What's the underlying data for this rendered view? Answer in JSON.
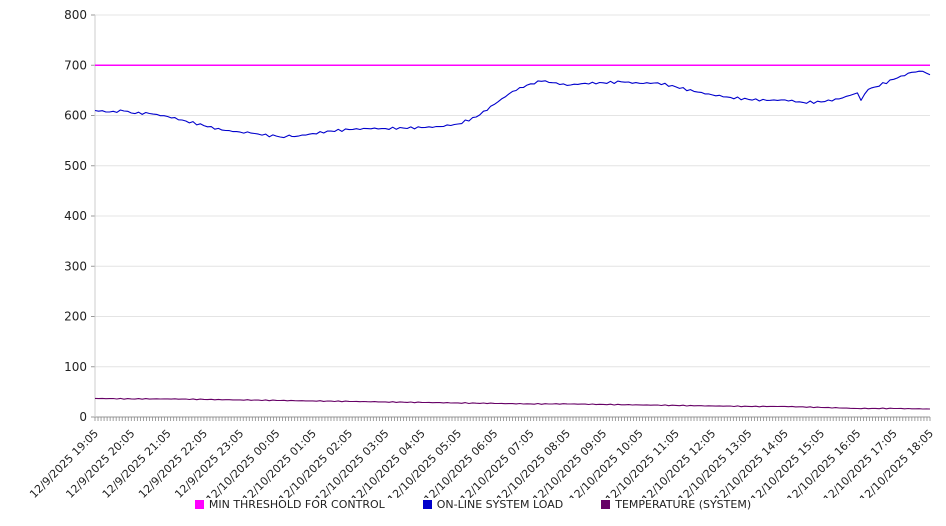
{
  "chart_data": {
    "type": "line",
    "title": "",
    "grid": "horizontal",
    "legend_position": "bottom",
    "x_axis": {
      "labels": [
        "12/9/2025 19:05",
        "12/9/2025 20:05",
        "12/9/2025 21:05",
        "12/9/2025 22:05",
        "12/9/2025 23:05",
        "12/10/2025 00:05",
        "12/10/2025 01:05",
        "12/10/2025 02:05",
        "12/10/2025 03:05",
        "12/10/2025 04:05",
        "12/10/2025 05:05",
        "12/10/2025 06:05",
        "12/10/2025 07:05",
        "12/10/2025 08:05",
        "12/10/2025 09:05",
        "12/10/2025 10:05",
        "12/10/2025 11:05",
        "12/10/2025 12:05",
        "12/10/2025 13:05",
        "12/10/2025 14:05",
        "12/10/2025 15:05",
        "12/10/2025 16:05",
        "12/10/2025 17:05",
        "12/10/2025 18:05"
      ],
      "hours_span": 23,
      "minor_ticks_per_hour": 12
    },
    "y_axis": {
      "min": 0,
      "max": 800,
      "tick_step": 100
    },
    "series": [
      {
        "name": "MIN THRESHOLD FOR CONTROL",
        "color": "#ff00ff",
        "kind": "threshold",
        "value": 700
      },
      {
        "name": "ON-LINE SYSTEM LOAD",
        "color": "#0000cc",
        "kind": "line",
        "points": [
          [
            0,
            610
          ],
          [
            0.4,
            607
          ],
          [
            0.8,
            609
          ],
          [
            1,
            605
          ],
          [
            1.5,
            604
          ],
          [
            2,
            598
          ],
          [
            2.5,
            589
          ],
          [
            3,
            580
          ],
          [
            3.5,
            571
          ],
          [
            4,
            567
          ],
          [
            4.3,
            565
          ],
          [
            4.6,
            561
          ],
          [
            5,
            559
          ],
          [
            5.2,
            556
          ],
          [
            5.35,
            561
          ],
          [
            5.5,
            558
          ],
          [
            6,
            564
          ],
          [
            6.5,
            569
          ],
          [
            7,
            572
          ],
          [
            7.5,
            574
          ],
          [
            8,
            574
          ],
          [
            8.5,
            575
          ],
          [
            9,
            576
          ],
          [
            9.5,
            578
          ],
          [
            10,
            583
          ],
          [
            10.5,
            597
          ],
          [
            11,
            622
          ],
          [
            11.5,
            648
          ],
          [
            12,
            663
          ],
          [
            12.3,
            668
          ],
          [
            12.7,
            665
          ],
          [
            13,
            660
          ],
          [
            13.5,
            664
          ],
          [
            14,
            665
          ],
          [
            14.5,
            667
          ],
          [
            15,
            664
          ],
          [
            15.5,
            665
          ],
          [
            16,
            657
          ],
          [
            16.5,
            648
          ],
          [
            17,
            641
          ],
          [
            17.5,
            636
          ],
          [
            18,
            632
          ],
          [
            18.5,
            630
          ],
          [
            19,
            631
          ],
          [
            19.5,
            626
          ],
          [
            20,
            627
          ],
          [
            20.5,
            633
          ],
          [
            20.8,
            640
          ],
          [
            21,
            645
          ],
          [
            21.1,
            630
          ],
          [
            21.3,
            652
          ],
          [
            21.5,
            657
          ],
          [
            22,
            672
          ],
          [
            22.5,
            686
          ],
          [
            22.8,
            688
          ],
          [
            23,
            681
          ]
        ]
      },
      {
        "name": "TEMPERATURE (SYSTEM)",
        "color": "#660066",
        "kind": "line",
        "points": [
          [
            0,
            37
          ],
          [
            1,
            36
          ],
          [
            2,
            36
          ],
          [
            3,
            35
          ],
          [
            4,
            34
          ],
          [
            5,
            33
          ],
          [
            6,
            32
          ],
          [
            7,
            31
          ],
          [
            8,
            30
          ],
          [
            9,
            29
          ],
          [
            10,
            28
          ],
          [
            11,
            27
          ],
          [
            12,
            26
          ],
          [
            13,
            26
          ],
          [
            14,
            25
          ],
          [
            15,
            24
          ],
          [
            16,
            23
          ],
          [
            17,
            22
          ],
          [
            18,
            21
          ],
          [
            19,
            21
          ],
          [
            20,
            19
          ],
          [
            20.5,
            18
          ],
          [
            21,
            17
          ],
          [
            22,
            17
          ],
          [
            23,
            16
          ]
        ]
      }
    ]
  }
}
